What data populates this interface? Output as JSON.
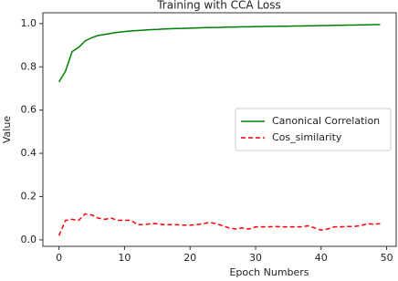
{
  "chart_data": {
    "type": "line",
    "title": "Training with CCA Loss",
    "x_label": "Epoch Numbers",
    "y_label": "Value",
    "x": [
      0,
      1,
      2,
      3,
      4,
      5,
      6,
      7,
      8,
      9,
      10,
      11,
      12,
      13,
      14,
      15,
      16,
      17,
      18,
      19,
      20,
      21,
      22,
      23,
      24,
      25,
      26,
      27,
      28,
      29,
      30,
      31,
      32,
      33,
      34,
      35,
      36,
      37,
      38,
      39,
      40,
      41,
      42,
      43,
      44,
      45,
      46,
      47,
      48,
      49
    ],
    "series": [
      {
        "name": "Canonical Correlation",
        "color": "#008000",
        "dash": false,
        "values": [
          0.73,
          0.78,
          0.87,
          0.89,
          0.92,
          0.935,
          0.945,
          0.95,
          0.955,
          0.96,
          0.963,
          0.966,
          0.968,
          0.97,
          0.972,
          0.973,
          0.975,
          0.976,
          0.977,
          0.978,
          0.979,
          0.98,
          0.981,
          0.982,
          0.982,
          0.983,
          0.984,
          0.984,
          0.985,
          0.985,
          0.986,
          0.986,
          0.987,
          0.987,
          0.988,
          0.988,
          0.989,
          0.989,
          0.99,
          0.99,
          0.991,
          0.991,
          0.992,
          0.992,
          0.993,
          0.993,
          0.994,
          0.994,
          0.995,
          0.995
        ]
      },
      {
        "name": "Cos_similarity",
        "color": "#ff0000",
        "dash": true,
        "values": [
          0.02,
          0.09,
          0.095,
          0.09,
          0.12,
          0.115,
          0.1,
          0.095,
          0.1,
          0.09,
          0.09,
          0.09,
          0.07,
          0.07,
          0.075,
          0.075,
          0.07,
          0.07,
          0.07,
          0.068,
          0.068,
          0.07,
          0.075,
          0.08,
          0.075,
          0.065,
          0.055,
          0.05,
          0.055,
          0.05,
          0.06,
          0.06,
          0.06,
          0.062,
          0.06,
          0.06,
          0.06,
          0.06,
          0.065,
          0.055,
          0.045,
          0.05,
          0.06,
          0.06,
          0.062,
          0.062,
          0.065,
          0.075,
          0.072,
          0.075
        ]
      }
    ],
    "xlim": [
      -2.45,
      51.45
    ],
    "ylim": [
      -0.03,
      1.05
    ],
    "xticks": [
      0,
      10,
      20,
      30,
      40,
      50
    ],
    "yticks": [
      {
        "value": 0,
        "label": "0.0"
      },
      {
        "value": 0.2,
        "label": "0.2"
      },
      {
        "value": 0.4,
        "label": "0.4"
      },
      {
        "value": 0.6,
        "label": "0.6"
      },
      {
        "value": 0.8,
        "label": "0.8"
      },
      {
        "value": 1,
        "label": "1.0"
      }
    ],
    "legend": "center right",
    "grid": false
  }
}
